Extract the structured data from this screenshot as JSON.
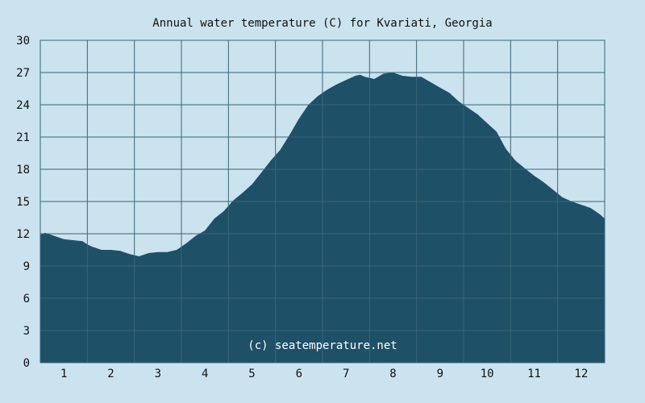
{
  "chart_data": {
    "type": "area",
    "title": "Annual water temperature (C) for Kvariati, Georgia",
    "xlabel": "",
    "ylabel": "",
    "x_tick_labels": [
      "1",
      "2",
      "3",
      "4",
      "5",
      "6",
      "7",
      "8",
      "9",
      "10",
      "11",
      "12"
    ],
    "y_tick_labels": [
      "0",
      "3",
      "6",
      "9",
      "12",
      "15",
      "18",
      "21",
      "24",
      "27",
      "30"
    ],
    "ylim": [
      0,
      30
    ],
    "xlim": [
      0.5,
      12.5
    ],
    "grid": true,
    "legend": "none",
    "watermark": "(c) seatemperature.net",
    "colors": {
      "background": "#cbe3ef",
      "fill": "#1e5068",
      "grid": "#3a6577"
    },
    "series": [
      {
        "x": [
          0.5,
          0.6,
          0.8,
          1.0,
          1.2,
          1.4,
          1.5,
          1.6,
          1.8,
          2.0,
          2.2,
          2.4,
          2.6,
          2.8,
          3.0,
          3.2,
          3.4,
          3.6,
          3.8,
          4.0,
          4.2,
          4.4,
          4.6,
          4.8,
          5.0,
          5.2,
          5.4,
          5.6,
          5.8,
          6.0,
          6.2,
          6.4,
          6.6,
          6.8,
          7.0,
          7.2,
          7.3,
          7.4,
          7.6,
          7.8,
          8.0,
          8.2,
          8.4,
          8.6,
          8.8,
          9.0,
          9.2,
          9.4,
          9.6,
          9.8,
          10.0,
          10.2,
          10.4,
          10.6,
          10.8,
          11.0,
          11.2,
          11.4,
          11.6,
          11.8,
          12.0,
          12.2,
          12.4,
          12.5
        ],
        "values": [
          11.9,
          12.1,
          11.8,
          11.5,
          11.4,
          11.3,
          11.0,
          10.8,
          10.5,
          10.5,
          10.4,
          10.1,
          9.9,
          10.2,
          10.3,
          10.3,
          10.5,
          11.1,
          11.8,
          12.3,
          13.4,
          14.1,
          15.1,
          15.8,
          16.6,
          17.7,
          18.8,
          19.8,
          21.2,
          22.7,
          24.0,
          24.8,
          25.4,
          25.9,
          26.3,
          26.7,
          26.8,
          26.6,
          26.4,
          26.9,
          27.0,
          26.7,
          26.6,
          26.6,
          26.1,
          25.6,
          25.1,
          24.3,
          23.7,
          23.1,
          22.3,
          21.5,
          19.9,
          18.8,
          18.1,
          17.4,
          16.8,
          16.1,
          15.4,
          15.0,
          14.7,
          14.4,
          13.8,
          13.4
        ]
      }
    ]
  }
}
